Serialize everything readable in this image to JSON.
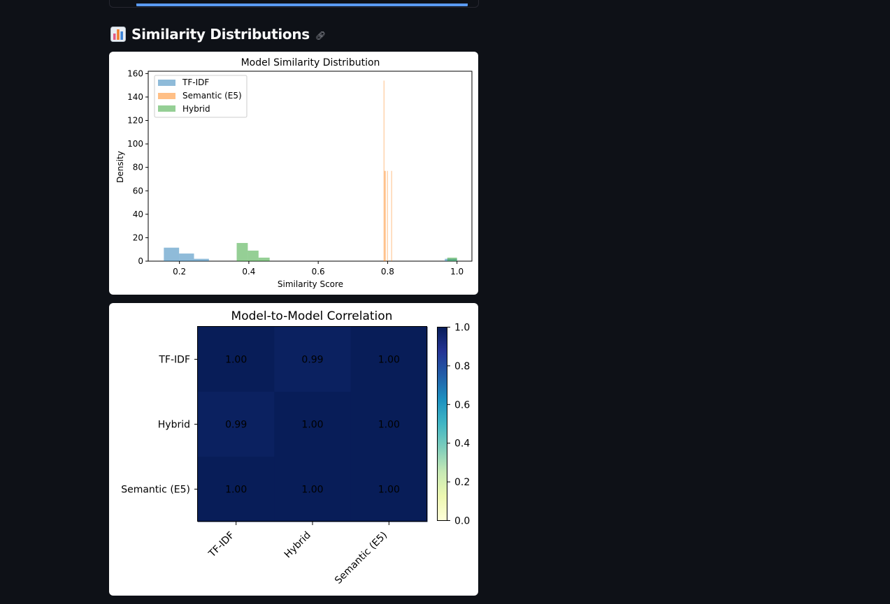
{
  "section": {
    "icon": "bar-chart-emoji-icon",
    "title": "Similarity Distributions",
    "link_icon": "link-icon"
  },
  "progress": {
    "value": 0.9
  },
  "chart_data": [
    {
      "type": "histogram",
      "title": "Model Similarity Distribution",
      "xlabel": "Similarity Score",
      "ylabel": "Density",
      "xlim": [
        0.11,
        1.043
      ],
      "ylim": [
        0,
        162
      ],
      "xticks": [
        0.2,
        0.4,
        0.6,
        0.8,
        1.0
      ],
      "xtick_labels": [
        "0.2",
        "0.4",
        "0.6",
        "0.8",
        "1.0"
      ],
      "yticks": [
        0,
        20,
        40,
        60,
        80,
        100,
        120,
        140,
        160
      ],
      "legend_position": "upper-left",
      "series": [
        {
          "name": "TF-IDF",
          "color": "#1f77b4",
          "bins": [
            {
              "x0": 0.155,
              "x1": 0.199,
              "y": 11.5
            },
            {
              "x0": 0.199,
              "x1": 0.242,
              "y": 6.5
            },
            {
              "x0": 0.242,
              "x1": 0.285,
              "y": 2.0
            },
            {
              "x0": 0.965,
              "x1": 0.985,
              "y": 2.0
            },
            {
              "x0": 0.985,
              "x1": 1.0,
              "y": 2.0
            }
          ]
        },
        {
          "name": "Semantic (E5)",
          "color": "#ff7f0e",
          "bins": [
            {
              "x0": 0.7885,
              "x1": 0.7905,
              "y": 154
            },
            {
              "x0": 0.7905,
              "x1": 0.7925,
              "y": 77
            },
            {
              "x0": 0.7925,
              "x1": 0.7945,
              "y": 77
            },
            {
              "x0": 0.7985,
              "x1": 0.8005,
              "y": 77
            },
            {
              "x0": 0.8105,
              "x1": 0.8125,
              "y": 77
            }
          ]
        },
        {
          "name": "Hybrid",
          "color": "#2ca02c",
          "bins": [
            {
              "x0": 0.365,
              "x1": 0.397,
              "y": 15.5
            },
            {
              "x0": 0.397,
              "x1": 0.428,
              "y": 9.0
            },
            {
              "x0": 0.428,
              "x1": 0.46,
              "y": 3.0
            },
            {
              "x0": 0.972,
              "x1": 0.985,
              "y": 3.0
            },
            {
              "x0": 0.985,
              "x1": 1.0,
              "y": 3.0
            }
          ]
        }
      ]
    },
    {
      "type": "heatmap",
      "title": "Model-to-Model Correlation",
      "rows": [
        "TF-IDF",
        "Hybrid",
        "Semantic (E5)"
      ],
      "cols": [
        "TF-IDF",
        "Hybrid",
        "Semantic (E5)"
      ],
      "values": [
        [
          1.0,
          0.99,
          1.0
        ],
        [
          0.99,
          1.0,
          1.0
        ],
        [
          1.0,
          1.0,
          1.0
        ]
      ],
      "cell_labels": [
        [
          "1.00",
          "0.99",
          "1.00"
        ],
        [
          "0.99",
          "1.00",
          "1.00"
        ],
        [
          "1.00",
          "1.00",
          "1.00"
        ]
      ],
      "colormap": "YlGnBu",
      "colorbar_ticks": [
        "0.0",
        "0.2",
        "0.4",
        "0.6",
        "0.8",
        "1.0"
      ],
      "vmin": 0,
      "vmax": 1
    }
  ]
}
